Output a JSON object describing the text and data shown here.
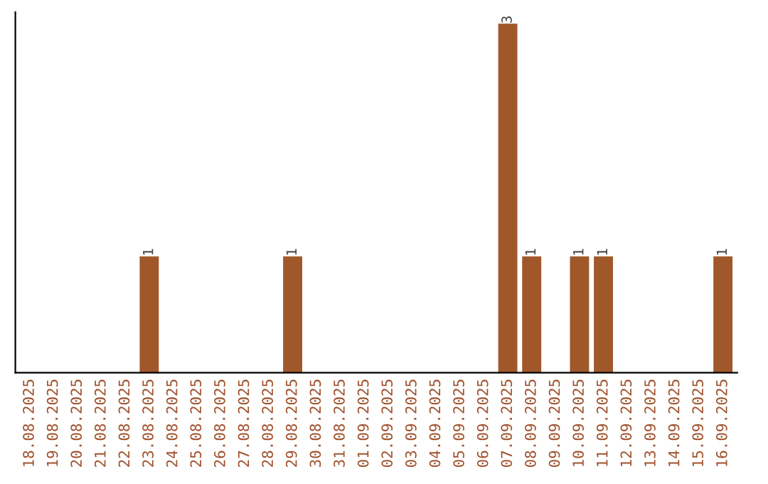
{
  "chart_data": {
    "type": "bar",
    "categories": [
      "18.08.2025",
      "19.08.2025",
      "20.08.2025",
      "21.08.2025",
      "22.08.2025",
      "23.08.2025",
      "24.08.2025",
      "25.08.2025",
      "26.08.2025",
      "27.08.2025",
      "28.08.2025",
      "29.08.2025",
      "30.08.2025",
      "31.08.2025",
      "01.09.2025",
      "02.09.2025",
      "03.09.2025",
      "04.09.2025",
      "05.09.2025",
      "06.09.2025",
      "07.09.2025",
      "08.09.2025",
      "09.09.2025",
      "10.09.2025",
      "11.09.2025",
      "12.09.2025",
      "13.09.2025",
      "14.09.2025",
      "15.09.2025",
      "16.09.2025"
    ],
    "values": [
      0,
      0,
      0,
      0,
      0,
      1,
      0,
      0,
      0,
      0,
      0,
      1,
      0,
      0,
      0,
      0,
      0,
      0,
      0,
      0,
      3,
      1,
      0,
      1,
      1,
      0,
      0,
      0,
      0,
      1
    ],
    "value_labels": [
      null,
      null,
      null,
      null,
      null,
      "1",
      null,
      null,
      null,
      null,
      null,
      "1",
      null,
      null,
      null,
      null,
      null,
      null,
      null,
      null,
      "3",
      "1",
      null,
      "1",
      "1",
      null,
      null,
      null,
      null,
      "1"
    ],
    "color": "#a0582a",
    "ylim": [
      0,
      3.1
    ],
    "tick_labels": "x",
    "grid": false,
    "legend": false
  }
}
